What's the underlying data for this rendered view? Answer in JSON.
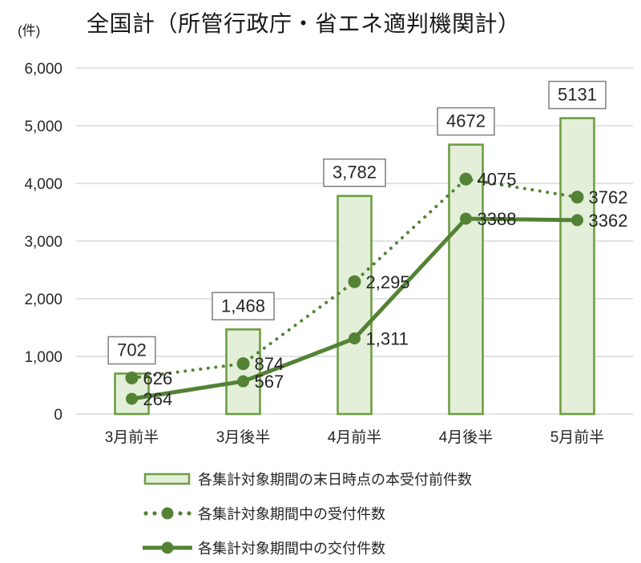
{
  "chart_data": {
    "type": "combo",
    "title": "全国計（所管行政庁・省エネ適判機関計）",
    "unit_label": "(件)",
    "categories": [
      "3月前半",
      "3月後半",
      "4月前半",
      "4月後半",
      "5月前半"
    ],
    "series": [
      {
        "name": "各集計対象期間の末日時点の本受付前件数",
        "type": "bar",
        "values": [
          702,
          1468,
          3782,
          4672,
          5131
        ],
        "labels": [
          "702",
          "1,468",
          "3,782",
          "4672",
          "5131"
        ]
      },
      {
        "name": "各集計対象期間中の受付件数",
        "type": "line-dotted",
        "values": [
          626,
          874,
          2295,
          4075,
          3762
        ],
        "labels": [
          "626",
          "874",
          "2,295",
          "4075",
          "3762"
        ]
      },
      {
        "name": "各集計対象期間中の交付件数",
        "type": "line-solid",
        "values": [
          264,
          567,
          1311,
          3388,
          3362
        ],
        "labels": [
          "264",
          "567",
          "1,311",
          "3388",
          "3362"
        ]
      }
    ],
    "ylim": [
      0,
      6000
    ],
    "ytick_step": 1000,
    "yticks": [
      "0",
      "1,000",
      "2,000",
      "3,000",
      "4,000",
      "5,000",
      "6,000"
    ],
    "grid": true,
    "legend_position": "bottom",
    "colors": {
      "bar_fill": "#e3efd9",
      "bar_border": "#6e9e44",
      "line": "#548235",
      "grid": "#d9d9d9",
      "box_border": "#7f7f7f",
      "box_fill": "#ffffff",
      "text": "#262626"
    }
  }
}
